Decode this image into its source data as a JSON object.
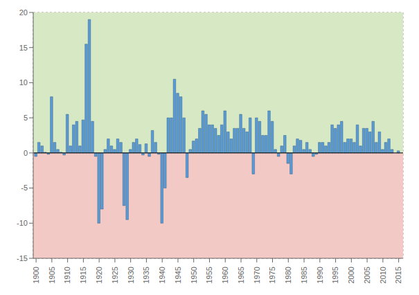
{
  "chart_data": {
    "type": "bar",
    "x": [
      1900,
      1901,
      1902,
      1903,
      1904,
      1905,
      1906,
      1907,
      1908,
      1909,
      1910,
      1911,
      1912,
      1913,
      1914,
      1915,
      1916,
      1917,
      1918,
      1919,
      1920,
      1921,
      1922,
      1923,
      1924,
      1925,
      1926,
      1927,
      1928,
      1929,
      1930,
      1931,
      1932,
      1933,
      1934,
      1935,
      1936,
      1937,
      1938,
      1939,
      1940,
      1941,
      1942,
      1943,
      1944,
      1945,
      1946,
      1947,
      1948,
      1949,
      1950,
      1951,
      1952,
      1953,
      1954,
      1955,
      1956,
      1957,
      1958,
      1959,
      1960,
      1961,
      1962,
      1963,
      1964,
      1965,
      1966,
      1967,
      1968,
      1969,
      1970,
      1971,
      1972,
      1973,
      1974,
      1975,
      1976,
      1977,
      1978,
      1979,
      1980,
      1981,
      1982,
      1983,
      1984,
      1985,
      1986,
      1987,
      1988,
      1989,
      1990,
      1991,
      1992,
      1993,
      1994,
      1995,
      1996,
      1997,
      1998,
      1999,
      2000,
      2001,
      2002,
      2003,
      2004,
      2005,
      2006,
      2007,
      2008,
      2009,
      2010,
      2011,
      2012,
      2013,
      2014,
      2015
    ],
    "values": [
      -0.5,
      1.5,
      1.0,
      0.1,
      -0.2,
      8.0,
      1.5,
      0.5,
      0.1,
      -0.3,
      5.5,
      1.0,
      4.0,
      4.5,
      1.0,
      4.7,
      15.5,
      19.0,
      4.5,
      -0.5,
      -10.0,
      -8.0,
      0.5,
      2.0,
      1.0,
      0.5,
      2.0,
      1.5,
      -7.5,
      -9.5,
      0.5,
      1.5,
      2.0,
      1.2,
      -0.3,
      1.3,
      -0.5,
      3.2,
      1.5,
      -0.2,
      -10.0,
      -5.0,
      5.0,
      5.0,
      10.5,
      8.5,
      8.0,
      5.0,
      -3.5,
      0.5,
      1.7,
      2.0,
      3.5,
      6.0,
      5.5,
      4.0,
      4.0,
      3.5,
      2.5,
      4.0,
      6.0,
      3.0,
      2.0,
      3.5,
      3.5,
      5.5,
      3.5,
      3.0,
      5.0,
      -3.0,
      5.0,
      4.5,
      2.5,
      2.5,
      6.0,
      4.5,
      0.5,
      -0.5,
      1.0,
      2.5,
      -1.5,
      -3.0,
      1.0,
      2.0,
      1.8,
      0.5,
      1.5,
      0.5,
      -0.5,
      -0.2,
      1.5,
      1.5,
      1.0,
      1.5,
      4.0,
      3.5,
      4.0,
      4.5,
      1.5,
      2.0,
      2.0,
      1.5,
      4.0,
      1.0,
      3.5,
      3.5,
      3.0,
      4.5,
      1.5,
      3.0,
      0.5,
      1.5,
      2.0,
      0.5,
      0.0,
      0.3
    ],
    "color": "#5B9BD5",
    "xlim": [
      1899.1,
      2016.4
    ],
    "xticks": [
      1900,
      1905,
      1910,
      1915,
      1920,
      1925,
      1930,
      1935,
      1940,
      1945,
      1950,
      1955,
      1960,
      1965,
      1970,
      1975,
      1980,
      1985,
      1990,
      1995,
      2000,
      2005,
      2010,
      2015
    ],
    "ylim": [
      -15,
      20
    ],
    "yticks": [
      -15,
      -10,
      -5,
      0,
      5,
      10,
      15,
      20
    ],
    "grid": true
  }
}
